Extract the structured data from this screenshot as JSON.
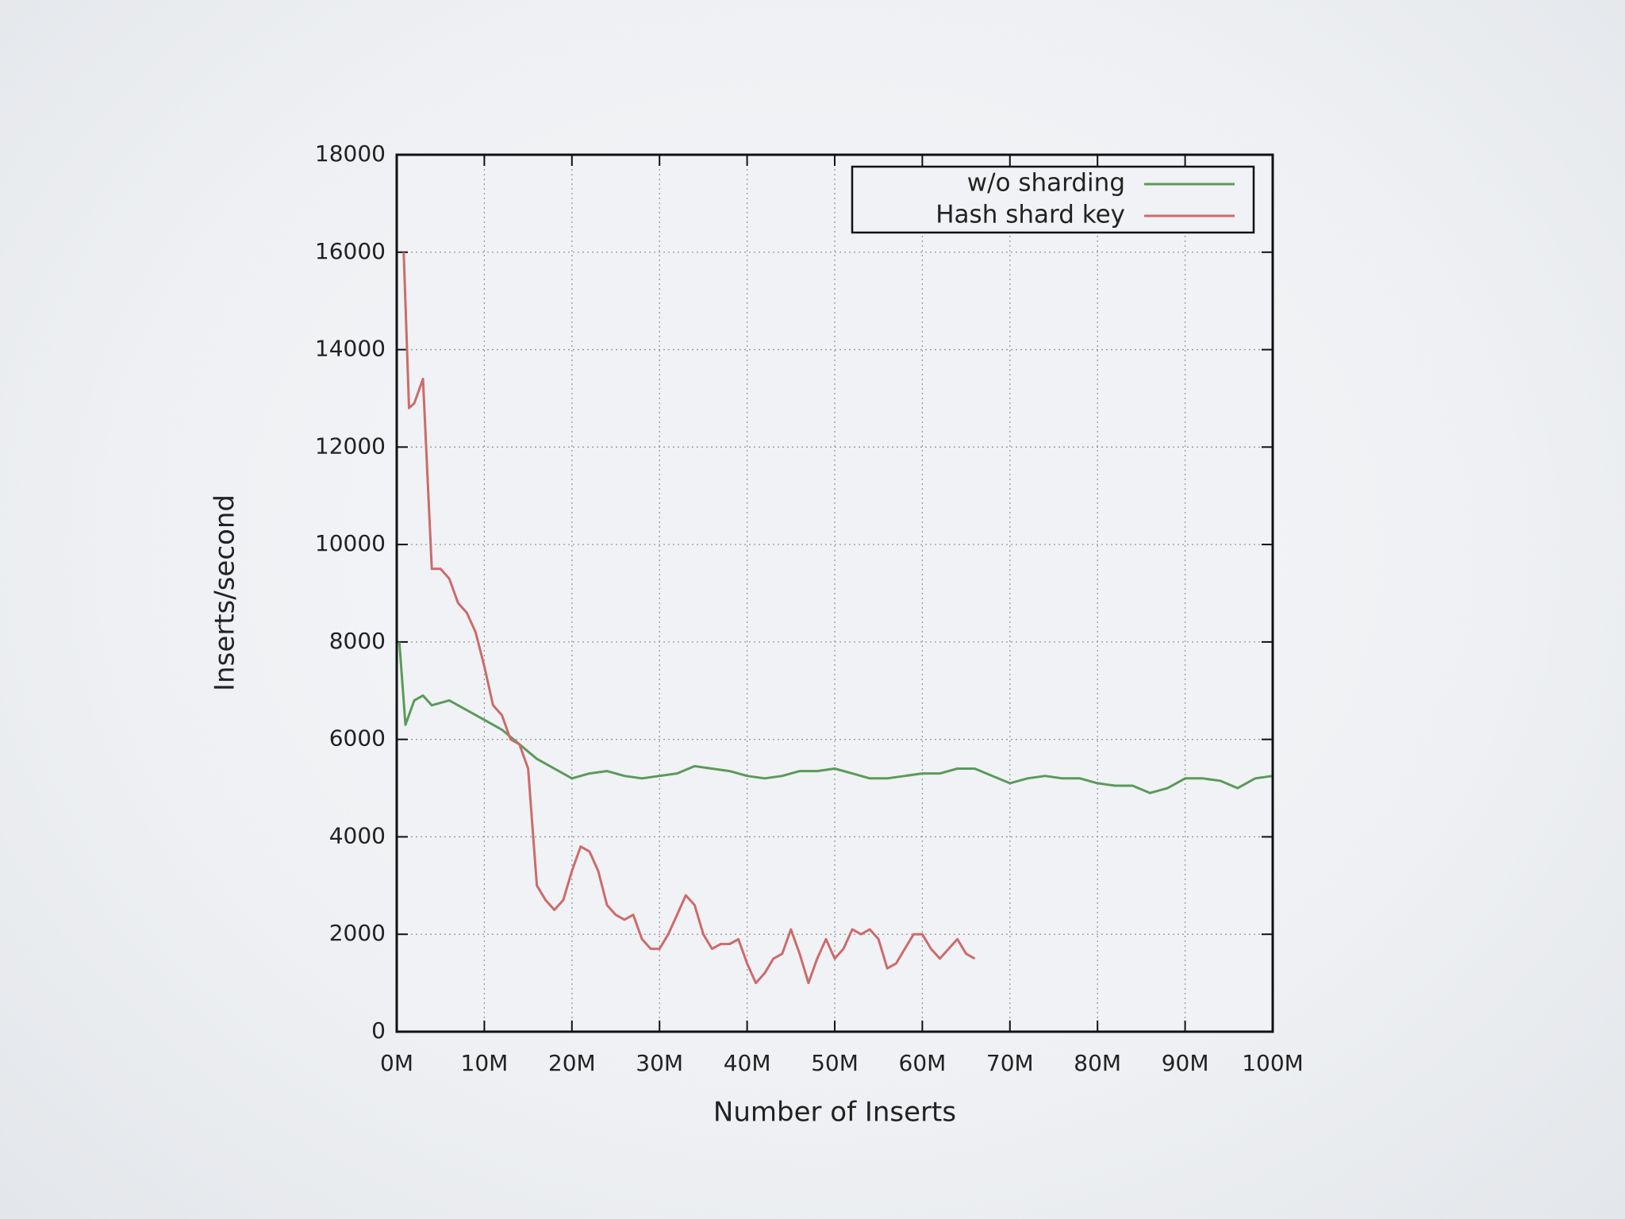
{
  "chart_data": {
    "type": "line",
    "xlabel": "Number of Inserts",
    "ylabel": "Inserts/second",
    "xlim": [
      0,
      100000000
    ],
    "ylim": [
      0,
      18000
    ],
    "xticks": [
      {
        "value": 0,
        "label": "0M"
      },
      {
        "value": 10000000,
        "label": "10M"
      },
      {
        "value": 20000000,
        "label": "20M"
      },
      {
        "value": 30000000,
        "label": "30M"
      },
      {
        "value": 40000000,
        "label": "40M"
      },
      {
        "value": 50000000,
        "label": "50M"
      },
      {
        "value": 60000000,
        "label": "60M"
      },
      {
        "value": 70000000,
        "label": "70M"
      },
      {
        "value": 80000000,
        "label": "80M"
      },
      {
        "value": 90000000,
        "label": "90M"
      },
      {
        "value": 100000000,
        "label": "100M"
      }
    ],
    "yticks": [
      0,
      2000,
      4000,
      6000,
      8000,
      10000,
      12000,
      14000,
      16000,
      18000
    ],
    "grid": true,
    "legend": "upper right",
    "series": [
      {
        "name": "w/o sharding",
        "color": "#5a9a5a",
        "x": [
          300000,
          1000000,
          2000000,
          3000000,
          4000000,
          6000000,
          8000000,
          10000000,
          12000000,
          14000000,
          16000000,
          18000000,
          20000000,
          22000000,
          24000000,
          26000000,
          28000000,
          30000000,
          32000000,
          34000000,
          36000000,
          38000000,
          40000000,
          42000000,
          44000000,
          46000000,
          48000000,
          50000000,
          52000000,
          54000000,
          56000000,
          58000000,
          60000000,
          62000000,
          64000000,
          66000000,
          68000000,
          70000000,
          72000000,
          74000000,
          76000000,
          78000000,
          80000000,
          82000000,
          84000000,
          86000000,
          88000000,
          90000000,
          92000000,
          94000000,
          96000000,
          98000000,
          100000000
        ],
        "values": [
          8000,
          6300,
          6800,
          6900,
          6700,
          6800,
          6600,
          6400,
          6200,
          5900,
          5600,
          5400,
          5200,
          5300,
          5350,
          5250,
          5200,
          5250,
          5300,
          5450,
          5400,
          5350,
          5250,
          5200,
          5250,
          5350,
          5350,
          5400,
          5300,
          5200,
          5200,
          5250,
          5300,
          5300,
          5400,
          5400,
          5250,
          5100,
          5200,
          5250,
          5200,
          5200,
          5100,
          5050,
          5050,
          4900,
          5000,
          5200,
          5200,
          5150,
          5000,
          5200,
          5250
        ]
      },
      {
        "name": "Hash shard key",
        "color": "#cc6b6b",
        "x": [
          800000,
          1400000,
          2000000,
          3000000,
          4000000,
          5000000,
          6000000,
          7000000,
          8000000,
          9000000,
          10000000,
          11000000,
          12000000,
          13000000,
          14000000,
          15000000,
          16000000,
          17000000,
          18000000,
          19000000,
          20000000,
          21000000,
          22000000,
          23000000,
          24000000,
          25000000,
          26000000,
          27000000,
          28000000,
          29000000,
          30000000,
          31000000,
          32000000,
          33000000,
          34000000,
          35000000,
          36000000,
          37000000,
          38000000,
          39000000,
          40000000,
          41000000,
          42000000,
          43000000,
          44000000,
          45000000,
          46000000,
          47000000,
          48000000,
          49000000,
          50000000,
          51000000,
          52000000,
          53000000,
          54000000,
          55000000,
          56000000,
          57000000,
          58000000,
          59000000,
          60000000,
          61000000,
          62000000,
          63000000,
          64000000,
          65000000,
          66000000
        ],
        "values": [
          16000,
          12800,
          12900,
          13400,
          9500,
          9500,
          9300,
          8800,
          8600,
          8200,
          7500,
          6700,
          6500,
          6000,
          5900,
          5400,
          3000,
          2700,
          2500,
          2700,
          3300,
          3800,
          3700,
          3300,
          2600,
          2400,
          2300,
          2400,
          1900,
          1700,
          1700,
          2000,
          2400,
          2800,
          2600,
          2000,
          1700,
          1800,
          1800,
          1900,
          1400,
          1000,
          1200,
          1500,
          1600,
          2100,
          1600,
          1000,
          1500,
          1900,
          1500,
          1700,
          2100,
          2000,
          2100,
          1900,
          1300,
          1400,
          1700,
          2000,
          2000,
          1700,
          1500,
          1700,
          1900,
          1600,
          1500
        ]
      }
    ]
  }
}
